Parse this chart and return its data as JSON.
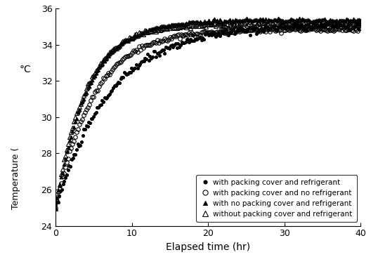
{
  "xlabel": "Elapsed time (hr)",
  "xlim": [
    0,
    40
  ],
  "ylim": [
    24,
    36
  ],
  "xticks": [
    0,
    10,
    20,
    30,
    40
  ],
  "yticks": [
    24,
    26,
    28,
    30,
    32,
    34,
    36
  ],
  "legend_entries": [
    "with packing cover and refrigerant",
    "with packing cover and no refrigerant",
    "with no packing cover and refrigerant",
    "without packing cover and refrigerant"
  ],
  "series": [
    {
      "label": "with packing cover and refrigerant",
      "marker": "o",
      "fillstyle": "full",
      "start": 25.0,
      "plateau": 35.1,
      "rate": 0.14,
      "noise": 0.1,
      "n_points": 250
    },
    {
      "label": "with packing cover and no refrigerant",
      "marker": "o",
      "fillstyle": "none",
      "start": 25.0,
      "plateau": 34.85,
      "rate": 0.2,
      "noise": 0.06,
      "n_points": 220
    },
    {
      "label": "with no packing cover and refrigerant",
      "marker": "^",
      "fillstyle": "full",
      "start": 25.0,
      "plateau": 35.35,
      "rate": 0.24,
      "noise": 0.05,
      "n_points": 220
    },
    {
      "label": "without packing cover and refrigerant",
      "marker": "^",
      "fillstyle": "none",
      "start": 25.0,
      "plateau": 35.15,
      "rate": 0.26,
      "noise": 0.06,
      "n_points": 220
    }
  ],
  "figure_width": 5.28,
  "figure_height": 3.66,
  "dpi": 100
}
